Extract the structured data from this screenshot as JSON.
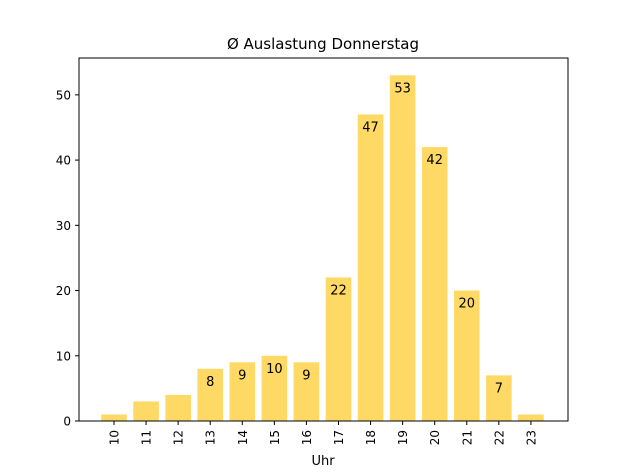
{
  "chart_data": {
    "type": "bar",
    "title": "Ø Auslastung Donnerstag",
    "xlabel": "Uhr",
    "ylabel": "",
    "categories": [
      "10",
      "11",
      "12",
      "13",
      "14",
      "15",
      "16",
      "17",
      "18",
      "19",
      "20",
      "21",
      "22",
      "23"
    ],
    "values": [
      1,
      3,
      4,
      8,
      9,
      10,
      9,
      22,
      47,
      53,
      42,
      20,
      7,
      1
    ],
    "data_labels": [
      "",
      "",
      "",
      "8",
      "9",
      "10",
      "9",
      "22",
      "47",
      "53",
      "42",
      "20",
      "7",
      ""
    ],
    "yticks": [
      0,
      10,
      20,
      30,
      40,
      50
    ],
    "ylim": [
      0,
      55.65
    ],
    "bar_color": "#FFD966",
    "grid": false,
    "legend": "none"
  }
}
